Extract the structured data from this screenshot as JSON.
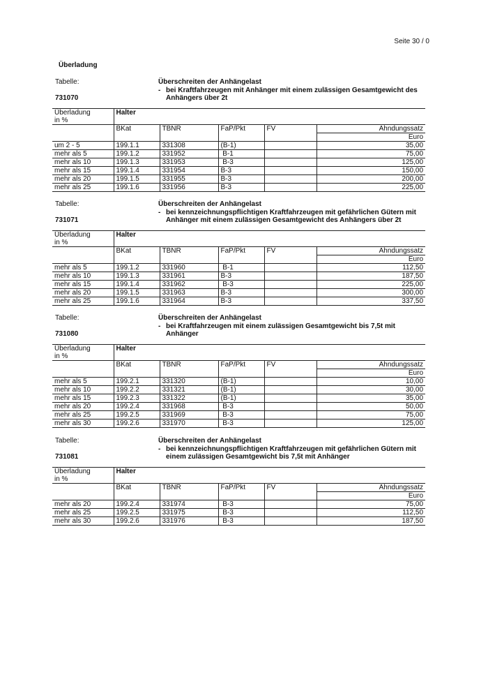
{
  "page_number": "Seite 30 / 0",
  "heading": "Überladung",
  "columns": {
    "overload": "Überladung",
    "overload_unit": "in %",
    "group": "Halter",
    "bkat": "BKat",
    "tbnr": "TBNR",
    "fap": "FaP/Pkt",
    "fv": "FV",
    "rate": "Ahndungssatz",
    "currency": "Euro"
  },
  "tables": [
    {
      "label": "Tabelle:",
      "code": "731070",
      "title": "Überschreiten der Anhängelast",
      "dash": "-",
      "subtitle": "bei Kraftfahrzeugen mit Anhänger mit einem zulässigen Gesamtgewicht des Anhängers über 2t",
      "rows": [
        [
          "um 2 - 5",
          "199.1.1",
          "331308",
          "(B-1)",
          "",
          "35,00"
        ],
        [
          "mehr als 5",
          "199.1.2",
          "331952",
          " B-1",
          "",
          "75,00"
        ],
        [
          "mehr als 10",
          "199.1.3",
          "331953",
          " B-3",
          "",
          "125,00"
        ],
        [
          "mehr als 15",
          "199.1.4",
          "331954",
          "B-3",
          "",
          "150,00"
        ],
        [
          "mehr als 20",
          "199.1.5",
          "331955",
          "B-3",
          "",
          "200,00"
        ],
        [
          "mehr als 25",
          "199.1.6",
          "331956",
          "B-3",
          "",
          "225,00"
        ]
      ]
    },
    {
      "label": "Tabelle:",
      "code": "731071",
      "title": "Überschreiten der Anhängelast",
      "dash": "-",
      "subtitle": "bei kennzeichnungspflichtigen Kraftfahrzeugen mit gefährlichen Gütern mit Anhänger mit einem zulässigen Gesamtgewicht des Anhängers über 2t",
      "rows": [
        [
          "mehr als 5",
          "199.1.2",
          "331960",
          " B-1",
          "",
          "112,50"
        ],
        [
          "mehr als 10",
          "199.1.3",
          "331961",
          "B-3",
          "",
          "187,50"
        ],
        [
          "mehr als 15",
          "199.1.4",
          "331962",
          " B-3",
          "",
          "225,00"
        ],
        [
          "mehr als 20",
          "199.1.5",
          "331963",
          "B-3",
          "",
          "300,00"
        ],
        [
          "mehr als 25",
          "199.1.6",
          "331964",
          "B-3",
          "",
          "337,50"
        ]
      ]
    },
    {
      "label": "Tabelle:",
      "code": "731080",
      "title": "Überschreiten der Anhängelast",
      "dash": "-",
      "subtitle": "bei Kraftfahrzeugen mit einem zulässigen Gesamtgewicht bis 7,5t mit Anhänger",
      "rows": [
        [
          "mehr als 5",
          "199.2.1",
          "331320",
          "(B-1)",
          "",
          "10,00"
        ],
        [
          "mehr als 10",
          "199.2.2",
          "331321",
          "(B-1)",
          "",
          "30,00"
        ],
        [
          "mehr als 15",
          "199.2.3",
          "331322",
          "(B-1)",
          "",
          "35,00"
        ],
        [
          "mehr als 20",
          "199.2.4",
          "331968",
          " B-3",
          "",
          "50,00"
        ],
        [
          "mehr als 25",
          "199.2.5",
          "331969",
          " B-3",
          "",
          "75,00"
        ],
        [
          "mehr als 30",
          "199.2.6",
          "331970",
          " B-3",
          "",
          "125,00"
        ]
      ]
    },
    {
      "label": "Tabelle:",
      "code": "731081",
      "title": "Überschreiten der Anhängelast",
      "dash": "-",
      "subtitle": "bei kennzeichnungspflichtigen Kraftfahrzeugen mit gefährlichen Gütern mit einem zulässigen Gesamtgewicht bis 7,5t mit Anhänger",
      "rows": [
        [
          "mehr als 20",
          "199.2.4",
          "331974",
          " B-3",
          "",
          "75,00"
        ],
        [
          "mehr als 25",
          "199.2.5",
          "331975",
          " B-3",
          "",
          "112,50"
        ],
        [
          "mehr als 30",
          "199.2.6",
          "331976",
          " B-3",
          "",
          "187,50"
        ]
      ]
    }
  ]
}
